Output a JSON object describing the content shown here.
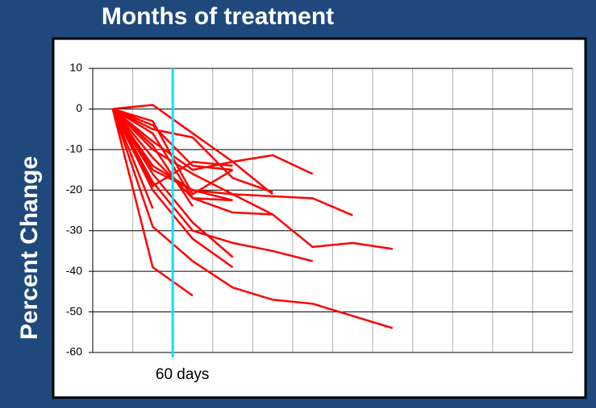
{
  "chart_data": {
    "type": "line",
    "title": "Months of treatment",
    "y_label": "Percent Change",
    "color": "#ff0000",
    "categories": [
      null,
      null,
      null,
      null,
      null,
      null,
      null,
      null,
      null,
      null,
      null,
      null
    ],
    "series": [
      {
        "values": [
          0,
          -24.5,
          null,
          null,
          null,
          null,
          null,
          null,
          null,
          null,
          null,
          null
        ]
      },
      {
        "values": [
          0,
          -39,
          -46,
          null,
          null,
          null,
          null,
          null,
          null,
          null,
          null,
          null
        ]
      },
      {
        "values": [
          0,
          -29,
          -37.5,
          -44,
          -47,
          -48,
          -51,
          -54,
          null,
          null,
          null,
          null
        ]
      },
      {
        "values": [
          0,
          -18,
          -30,
          -33,
          -35,
          -37.5,
          null,
          null,
          null,
          null,
          null,
          null
        ]
      },
      {
        "values": [
          0,
          -10,
          -16,
          -21,
          -26,
          -34,
          -33,
          -34.5,
          null,
          null,
          null,
          null
        ]
      },
      {
        "values": [
          0,
          -14,
          -20,
          -21,
          -21.5,
          -22,
          -26.2,
          null,
          null,
          null,
          null,
          null
        ]
      },
      {
        "values": [
          0,
          -8,
          -15,
          -13,
          -11.4,
          -16,
          null,
          null,
          null,
          null,
          null,
          null
        ]
      },
      {
        "values": [
          0,
          -20,
          -32,
          -39,
          null,
          null,
          null,
          null,
          null,
          null,
          null,
          null
        ]
      },
      {
        "values": [
          0,
          -16,
          -28,
          -36.5,
          null,
          null,
          null,
          null,
          null,
          null,
          null,
          null
        ]
      },
      {
        "values": [
          0,
          -12,
          -22,
          -25.5,
          -26,
          null,
          null,
          null,
          null,
          null,
          null,
          null
        ]
      },
      {
        "values": [
          0,
          -6,
          -22,
          -22.5,
          null,
          null,
          null,
          null,
          null,
          null,
          null,
          null
        ]
      },
      {
        "values": [
          0,
          -4,
          -14,
          -15,
          null,
          null,
          null,
          null,
          null,
          null,
          null,
          null
        ]
      },
      {
        "values": [
          0,
          1,
          -6,
          -13,
          -21,
          null,
          null,
          null,
          null,
          null,
          null,
          null
        ]
      },
      {
        "values": [
          0,
          -5,
          -7,
          -17,
          -20.5,
          null,
          null,
          null,
          null,
          null,
          null,
          null
        ]
      },
      {
        "values": [
          0,
          -15,
          -20,
          -22.5,
          null,
          null,
          null,
          null,
          null,
          null,
          null,
          null
        ]
      },
      {
        "values": [
          0,
          -19,
          -13,
          -14,
          null,
          null,
          null,
          null,
          null,
          null,
          null,
          null
        ]
      },
      {
        "values": [
          0,
          -9,
          -24,
          null,
          null,
          null,
          null,
          null,
          null,
          null,
          null,
          null
        ]
      },
      {
        "values": [
          0,
          -3,
          -21,
          -15,
          null,
          null,
          null,
          null,
          null,
          null,
          null,
          null
        ]
      }
    ],
    "ylim": [
      -60,
      10
    ],
    "yticks": [
      10,
      0,
      -10,
      -20,
      -30,
      -40,
      -50,
      -60
    ],
    "grid": true,
    "marker_line": {
      "label": "60 days",
      "x": 1.5,
      "color": "#00e5ff"
    }
  }
}
